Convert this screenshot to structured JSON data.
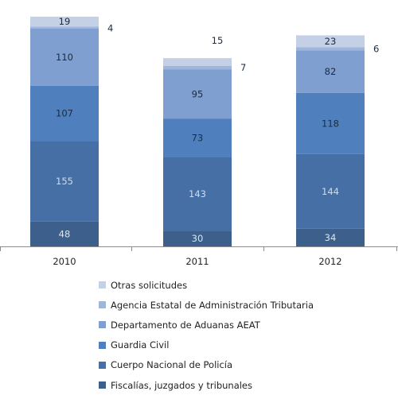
{
  "chart_data": {
    "type": "bar",
    "stacked": true,
    "categories": [
      "2010",
      "2011",
      "2012"
    ],
    "series": [
      {
        "name": "Fiscalías, juzgados y tribunales",
        "values": [
          48,
          30,
          34
        ],
        "color": "#3c5f8c",
        "label_color": "#dbe6f3"
      },
      {
        "name": "Cuerpo Nacional de Policía",
        "values": [
          155,
          143,
          144
        ],
        "color": "#466fa5",
        "label_color": "#cfdcee"
      },
      {
        "name": "Guardia Civil",
        "values": [
          107,
          73,
          118
        ],
        "color": "#4f80bd",
        "label_color": "#1d2b3d"
      },
      {
        "name": "Departamento de Aduanas AEAT",
        "values": [
          110,
          95,
          82
        ],
        "color": "#7e9fd0",
        "label_color": "#1d2b3d"
      },
      {
        "name": "Agencia Estatal de Administración Tributaria",
        "values": [
          4,
          7,
          6
        ],
        "color": "#9fb6dc",
        "label_color": "#1d2b3d"
      },
      {
        "name": "Otras solicitudes",
        "values": [
          19,
          15,
          23
        ],
        "color": "#c4d0e6",
        "label_color": "#1d2b3d"
      }
    ],
    "legend_position": "bottom",
    "grid": false
  }
}
